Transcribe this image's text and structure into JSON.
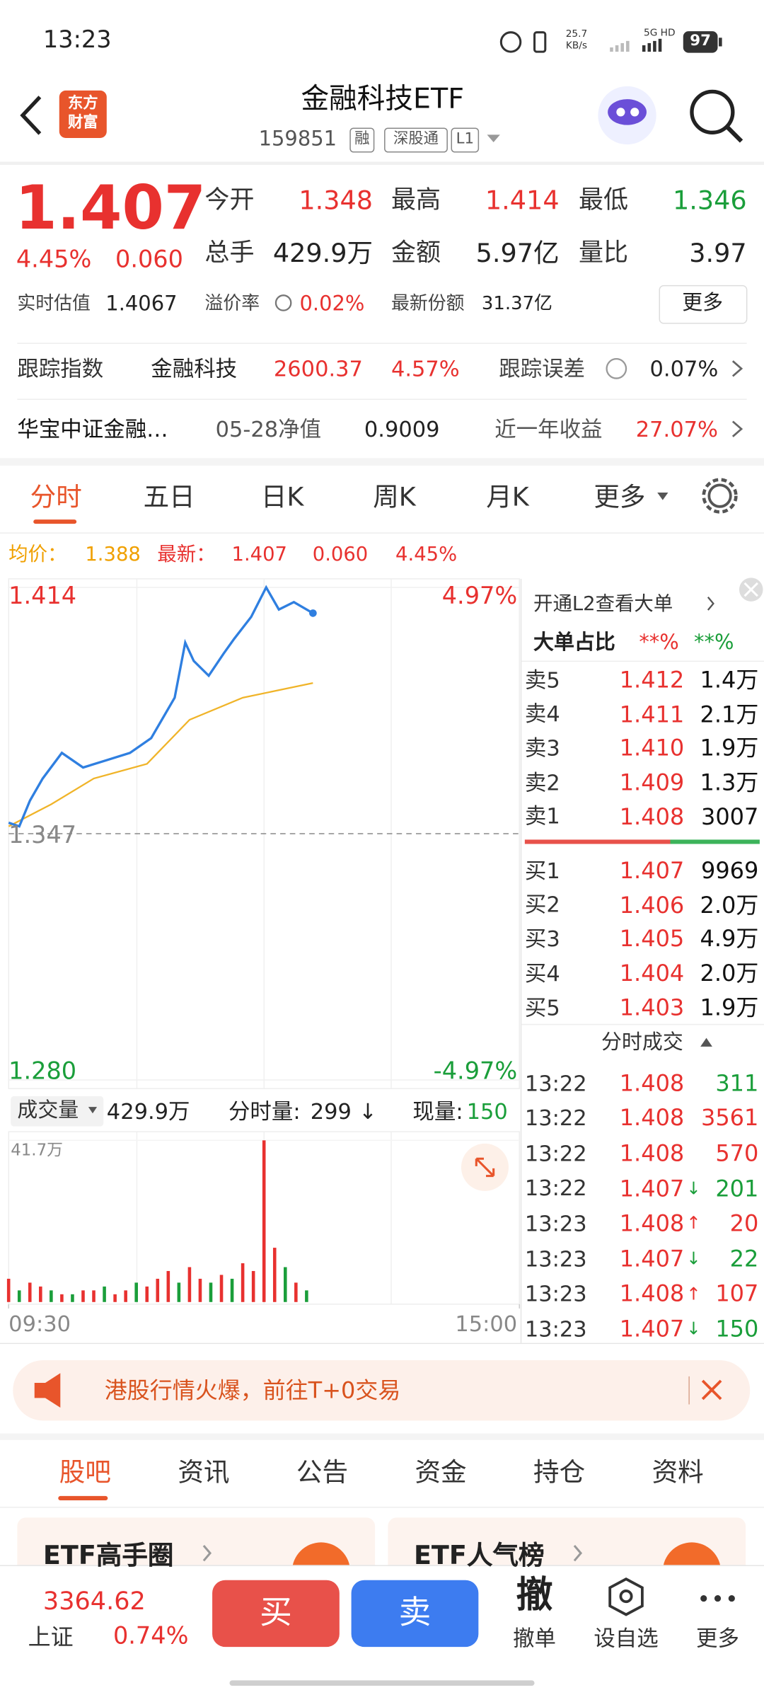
{
  "status_bar": {
    "time": "13:23",
    "net_speed": "25.7",
    "net_unit": "KB/s",
    "network": "5G HD",
    "battery": "97"
  },
  "header": {
    "logo_lines": [
      "东方",
      "财富"
    ],
    "title": "金融科技ETF",
    "code": "159851",
    "tags": [
      "融",
      "深股通",
      "L1"
    ]
  },
  "quote": {
    "price": "1.407",
    "change_pct": "4.45%",
    "change": "0.060",
    "stats": [
      {
        "label": "今开",
        "value": "1.348",
        "color": "#e8312f"
      },
      {
        "label": "最高",
        "value": "1.414",
        "color": "#e8312f"
      },
      {
        "label": "最低",
        "value": "1.346",
        "color": "#1a9e3a"
      },
      {
        "label": "总手",
        "value": "429.9万",
        "color": "#222222"
      },
      {
        "label": "金额",
        "value": "5.97亿",
        "color": "#222222"
      },
      {
        "label": "量比",
        "value": "3.97",
        "color": "#222222"
      }
    ],
    "estimate_label": "实时估值",
    "estimate": "1.4067",
    "premium_label": "溢价率",
    "premium": "0.02%",
    "shares_label": "最新份额",
    "shares": "31.37亿",
    "more_button": "更多"
  },
  "tracking": {
    "label": "跟踪指数",
    "index_name": "金融科技",
    "index_value": "2600.37",
    "index_change": "4.57%",
    "error_label": "跟踪误差",
    "error_value": "0.07%"
  },
  "fund_row": {
    "name": "华宝中证金融…",
    "nav_label": "05-28净值",
    "nav": "0.9009",
    "return_label": "近一年收益",
    "return": "27.07%"
  },
  "chart_tabs": [
    "分时",
    "五日",
    "日K",
    "周K",
    "月K",
    "更多"
  ],
  "intraday": {
    "avg_label": "均价：",
    "avg": "1.388",
    "latest_label": "最新：",
    "latest": "1.407",
    "change": "0.060",
    "change_pct": "4.45%",
    "ylim": [
      1.28,
      1.414
    ],
    "yticks": [
      1.414,
      1.347,
      {
        "value": 1.28,
        "label": "1.280"
      }
    ],
    "pct_labels": [
      "4.97%",
      "-4.97%"
    ],
    "xlim": [
      0,
      240
    ],
    "xticks": [
      {
        "value": 0,
        "label": "09:30"
      },
      {
        "value": 240,
        "label": "15:00"
      }
    ],
    "price_line": {
      "color": "#2f7fe0",
      "x": [
        0,
        5,
        10,
        16,
        25,
        35,
        46,
        57,
        67,
        78,
        83,
        87,
        94,
        101,
        106,
        114,
        121,
        127,
        134,
        143
      ],
      "values": [
        1.35,
        1.349,
        1.356,
        1.362,
        1.369,
        1.365,
        1.367,
        1.369,
        1.373,
        1.384,
        1.399,
        1.394,
        1.39,
        1.396,
        1.4,
        1.406,
        1.414,
        1.408,
        1.41,
        1.407
      ]
    },
    "avg_line": {
      "color": "#f0b429",
      "x": [
        0,
        20,
        40,
        65,
        85,
        110,
        143
      ],
      "values": [
        1.349,
        1.355,
        1.362,
        1.366,
        1.378,
        1.384,
        1.388
      ]
    }
  },
  "volume": {
    "title": "成交量",
    "total": "429.9万",
    "period_label": "分时量:",
    "period": "299",
    "period_arrow": "↓",
    "current_label": "现量:",
    "current": "150",
    "ylim": [
      0,
      41.7
    ],
    "max_label": "41.7万",
    "x": [
      0,
      5,
      10,
      15,
      20,
      25,
      30,
      35,
      40,
      45,
      50,
      55,
      60,
      65,
      70,
      75,
      80,
      85,
      90,
      95,
      100,
      105,
      110,
      115,
      120,
      125,
      130,
      135,
      140
    ],
    "values": [
      6,
      3,
      5,
      4,
      3,
      2,
      2,
      3,
      3,
      4,
      2,
      3,
      5,
      4,
      6,
      8,
      5,
      9,
      6,
      5,
      7,
      6,
      10,
      8,
      41.7,
      14,
      9,
      5,
      3
    ],
    "colors": [
      "#e8312f",
      "#1a9e3a",
      "#e8312f",
      "#e8312f",
      "#1a9e3a",
      "#e8312f",
      "#1a9e3a",
      "#e8312f",
      "#e8312f",
      "#1a9e3a",
      "#e8312f",
      "#e8312f",
      "#1a9e3a",
      "#e8312f",
      "#e8312f",
      "#e8312f",
      "#1a9e3a",
      "#e8312f",
      "#e8312f",
      "#1a9e3a",
      "#e8312f",
      "#1a9e3a",
      "#e8312f",
      "#e8312f",
      "#e8312f",
      "#e8312f",
      "#1a9e3a",
      "#e8312f",
      "#1a9e3a"
    ]
  },
  "order_book": {
    "l2_prompt": "开通L2查看大单",
    "big_order_label": "大单占比",
    "big_buy": "**%",
    "big_sell": "**%",
    "asks": [
      {
        "label": "卖5",
        "price": "1.412",
        "volume": "1.4万"
      },
      {
        "label": "卖4",
        "price": "1.411",
        "volume": "2.1万"
      },
      {
        "label": "卖3",
        "price": "1.410",
        "volume": "1.9万"
      },
      {
        "label": "卖2",
        "price": "1.409",
        "volume": "1.3万"
      },
      {
        "label": "卖1",
        "price": "1.408",
        "volume": "3007"
      }
    ],
    "bids": [
      {
        "label": "买1",
        "price": "1.407",
        "volume": "9969"
      },
      {
        "label": "买2",
        "price": "1.406",
        "volume": "2.0万"
      },
      {
        "label": "买3",
        "price": "1.405",
        "volume": "4.9万"
      },
      {
        "label": "买4",
        "price": "1.404",
        "volume": "2.0万"
      },
      {
        "label": "买5",
        "price": "1.403",
        "volume": "1.9万"
      }
    ],
    "trades_title": "分时成交",
    "trades": [
      {
        "time": "13:22",
        "price": "1.408",
        "volume": "311",
        "color": "#1a9e3a"
      },
      {
        "time": "13:22",
        "price": "1.408",
        "volume": "3561",
        "color": "#e8312f"
      },
      {
        "time": "13:22",
        "price": "1.408",
        "volume": "570",
        "color": "#e8312f"
      },
      {
        "time": "13:22",
        "price": "1.407",
        "arrow": "↓",
        "volume": "201",
        "color": "#1a9e3a"
      },
      {
        "time": "13:23",
        "price": "1.408",
        "arrow": "↑",
        "volume": "20",
        "color": "#e8312f"
      },
      {
        "time": "13:23",
        "price": "1.407",
        "arrow": "↓",
        "volume": "22",
        "color": "#1a9e3a"
      },
      {
        "time": "13:23",
        "price": "1.408",
        "arrow": "↑",
        "volume": "107",
        "color": "#e8312f"
      },
      {
        "time": "13:23",
        "price": "1.407",
        "arrow": "↓",
        "volume": "150",
        "color": "#1a9e3a"
      }
    ]
  },
  "banner": {
    "text": "港股行情火爆，前往T+0交易"
  },
  "bottom_tabs": [
    "股吧",
    "资讯",
    "公告",
    "资金",
    "持仓",
    "资料"
  ],
  "cards": [
    "ETF高手圈",
    "ETF人气榜"
  ],
  "bottom_bar": {
    "index_value": "3364.62",
    "index_name": "上证",
    "index_change": "0.74%",
    "buy": "买",
    "sell": "卖",
    "cancel_icon": "撤",
    "cancel": "撤单",
    "watch": "设自选",
    "more": "更多"
  }
}
